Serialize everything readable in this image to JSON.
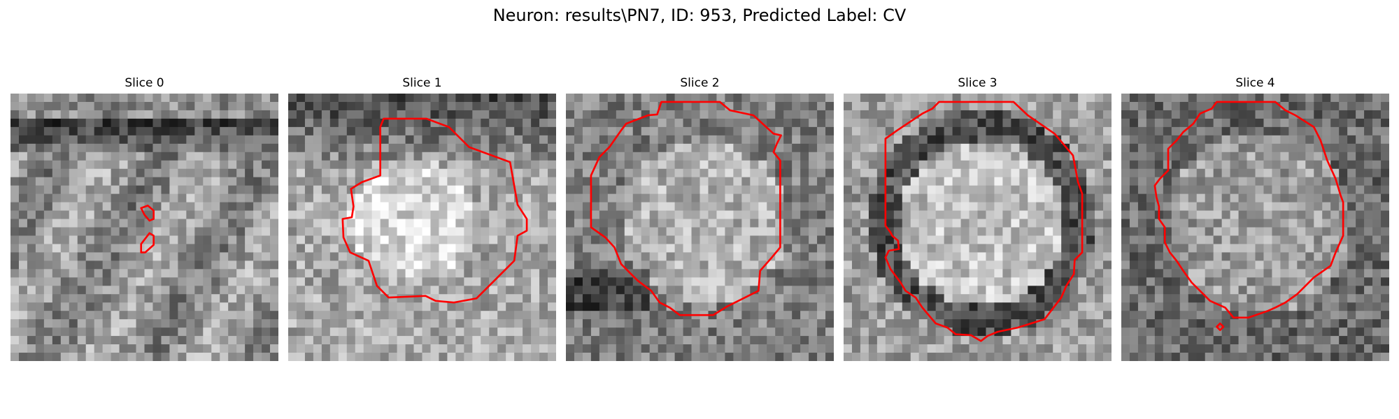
{
  "figure": {
    "title": "Neuron: results\\PN7, ID: 953, Predicted Label: CV",
    "contour_color": "#ff0000",
    "colormap": "gray",
    "grid_size": 32
  },
  "slices": [
    {
      "title": "Slice 0",
      "tone": 0
    },
    {
      "title": "Slice 1",
      "tone": 1
    },
    {
      "title": "Slice 2",
      "tone": 2
    },
    {
      "title": "Slice 3",
      "tone": 3
    },
    {
      "title": "Slice 4",
      "tone": 4
    }
  ]
}
